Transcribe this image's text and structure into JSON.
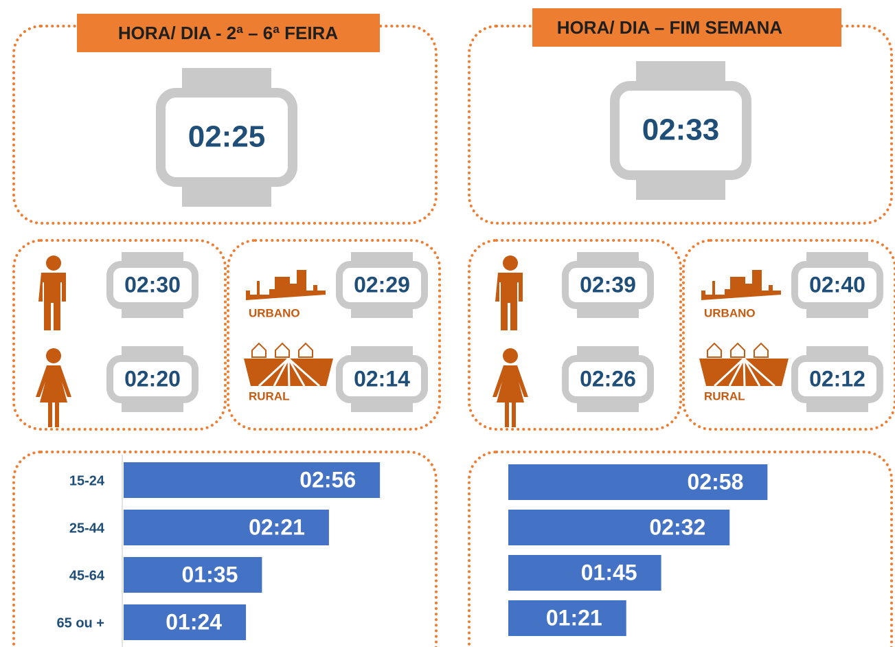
{
  "panels": [
    {
      "title": "HORA/ DIA - 2ª – 6ª FEIRA",
      "total": "02:25",
      "men": "02:30",
      "women": "02:20",
      "urban_label": "URBANO",
      "urban": "02:29",
      "rural_label": "RURAL",
      "rural": "02:14"
    },
    {
      "title": "HORA/ DIA – FIM SEMANA",
      "total": "02:33",
      "men": "02:39",
      "women": "02:26",
      "urban_label": "URBANO",
      "urban": "02:40",
      "rural_label": "RURAL",
      "rural": "02:12"
    }
  ],
  "chart_data": [
    {
      "type": "bar",
      "categories": [
        "15-24",
        "25-44",
        "45-64",
        "65 ou +"
      ],
      "values": [
        176,
        141,
        95,
        84
      ],
      "value_labels": [
        "02:56",
        "02:21",
        "01:35",
        "01:24"
      ],
      "color": "#4472c4"
    },
    {
      "type": "bar",
      "categories": [
        null,
        null,
        null,
        null
      ],
      "values": [
        178,
        152,
        105,
        81
      ],
      "value_labels": [
        "02:58",
        "02:32",
        "01:45",
        "01:21"
      ],
      "color": "#4472c4"
    }
  ]
}
